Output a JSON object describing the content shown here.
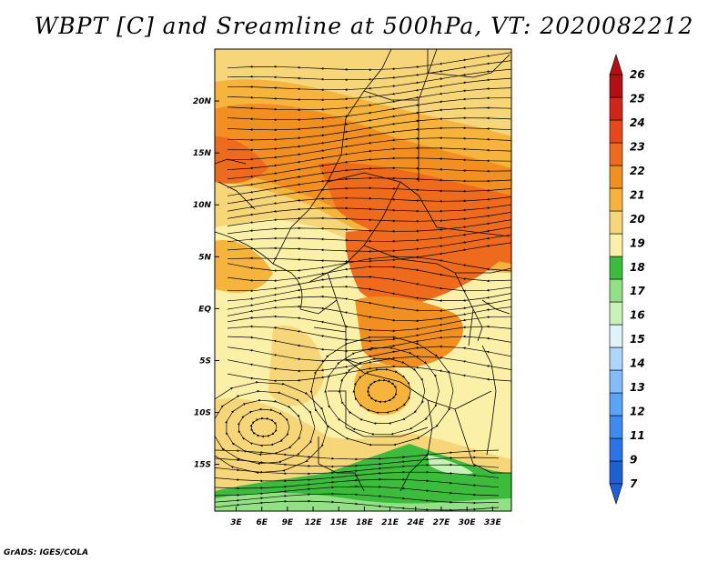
{
  "title": "WBPT [C] and Sreamline at 500hPa, VT: 2020082212",
  "credit": "GrADS: IGES/COLA",
  "map": {
    "lon_ticks": [
      "3E",
      "6E",
      "9E",
      "12E",
      "15E",
      "18E",
      "21E",
      "24E",
      "27E",
      "30E",
      "33E"
    ],
    "lon_values": [
      3,
      6,
      9,
      12,
      15,
      18,
      21,
      24,
      27,
      30,
      33
    ],
    "lat_ticks": [
      "20N",
      "15N",
      "10N",
      "5N",
      "EQ",
      "5S",
      "10S",
      "15S"
    ],
    "lat_values": [
      20,
      15,
      10,
      5,
      0,
      -5,
      -10,
      -15
    ],
    "lon_range": [
      0.5,
      35.2
    ],
    "lat_range": [
      -19.5,
      25
    ]
  },
  "colorbar": {
    "levels": [
      "7",
      "9",
      "11",
      "12",
      "13",
      "14",
      "15",
      "16",
      "17",
      "18",
      "19",
      "20",
      "21",
      "22",
      "23",
      "24",
      "25",
      "26"
    ],
    "colors": [
      "#1f5fd6",
      "#2a73e8",
      "#3d8bf0",
      "#5aa4f5",
      "#83bdf8",
      "#aed6fb",
      "#dff3fb",
      "#c8f2b8",
      "#94e086",
      "#3dbb3d",
      "#fbf0a8",
      "#f7d67a",
      "#f6b43c",
      "#f28f21",
      "#ee6b1e",
      "#e8471b",
      "#d0251a",
      "#b30f14"
    ]
  }
}
